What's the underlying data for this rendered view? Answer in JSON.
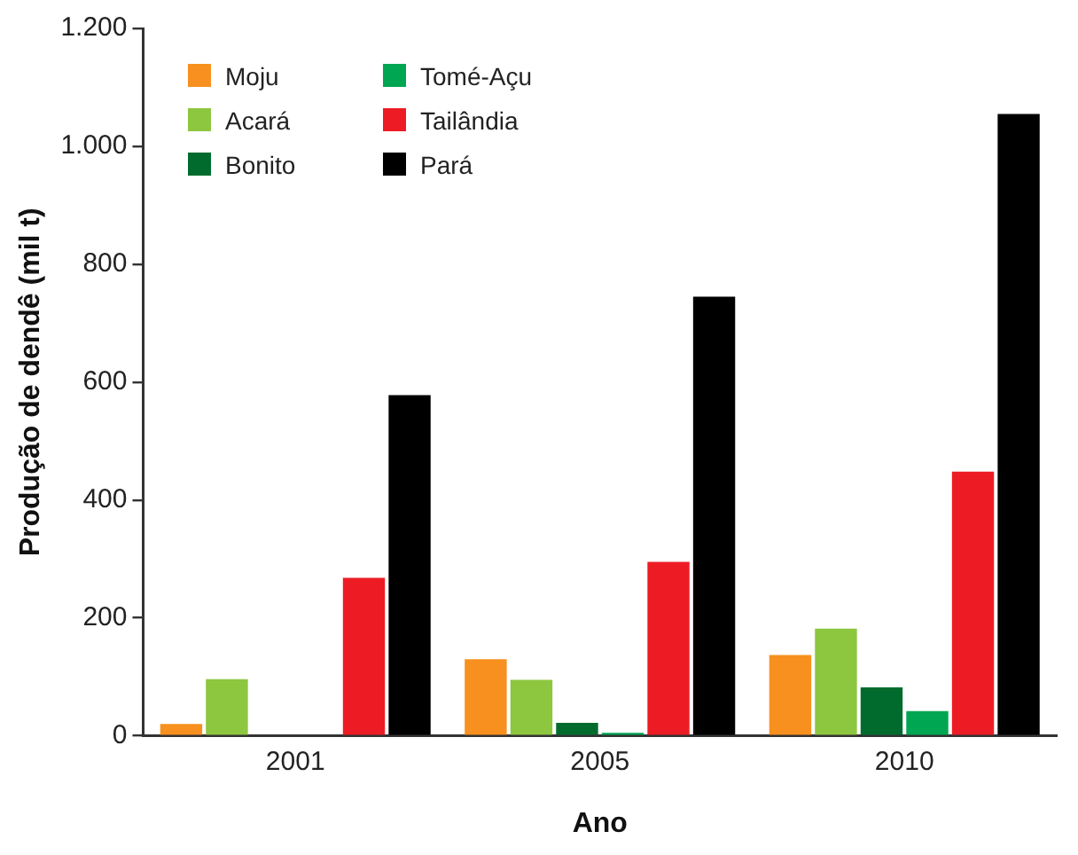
{
  "chart_data": {
    "type": "bar",
    "xlabel": "Ano",
    "ylabel": "Produção de dendê (mil t)",
    "categories": [
      "2001",
      "2005",
      "2010"
    ],
    "series": [
      {
        "name": "Moju",
        "color": "#f7901e",
        "values": [
          20,
          130,
          137
        ]
      },
      {
        "name": "Acará",
        "color": "#8dc63f",
        "values": [
          96,
          95,
          182
        ]
      },
      {
        "name": "Bonito",
        "color": "#006b2d",
        "values": [
          null,
          22,
          82
        ]
      },
      {
        "name": "Tomé-Açu",
        "color": "#00a651",
        "values": [
          null,
          5,
          42
        ]
      },
      {
        "name": "Tailândia",
        "color": "#ed1c24",
        "values": [
          268,
          295,
          448
        ]
      },
      {
        "name": "Pará",
        "color": "#000000",
        "values": [
          578,
          745,
          1055
        ]
      }
    ],
    "ylim": [
      0,
      1200
    ],
    "yticks": [
      0,
      200,
      400,
      600,
      800,
      {
        "value": 1000,
        "label": "1.000"
      },
      {
        "value": 1200,
        "label": "1.200"
      }
    ],
    "grid": false,
    "legend": "top left"
  }
}
